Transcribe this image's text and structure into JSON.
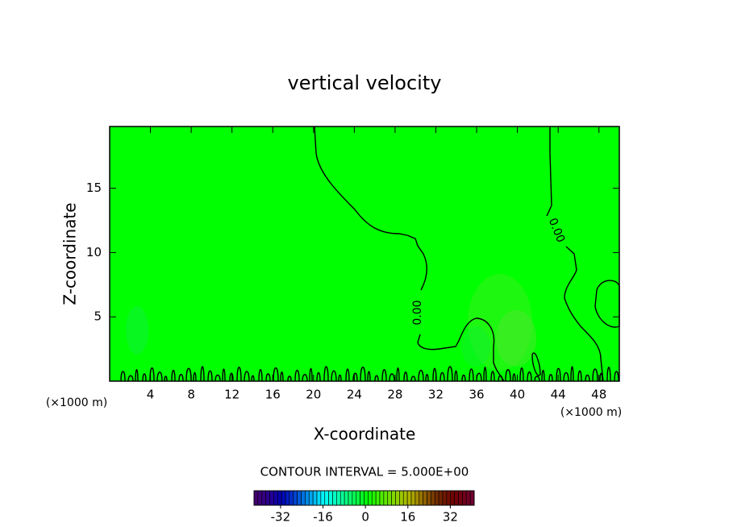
{
  "chart_data": {
    "type": "contour",
    "title": "vertical velocity",
    "x_label": "X-coordinate",
    "y_label": "Z-coordinate",
    "x_unit_left": "(×1000 m)",
    "x_unit_right": "(×1000 m)",
    "xlim": [
      0,
      50
    ],
    "ylim": [
      0,
      19.8
    ],
    "xticks": [
      4,
      8,
      12,
      16,
      20,
      24,
      28,
      32,
      36,
      40,
      44,
      48
    ],
    "yticks": [
      5,
      10,
      15
    ],
    "field_color": "#00ff00",
    "contour_levels": [
      0
    ],
    "contour_labels": [
      "0.00",
      "0.00"
    ],
    "contour_interval_text": "CONTOUR INTERVAL = 5.000E+00",
    "colorbar": {
      "lim": [
        -42,
        41
      ],
      "ticks": [
        -32,
        -16,
        0,
        16,
        32
      ]
    }
  }
}
